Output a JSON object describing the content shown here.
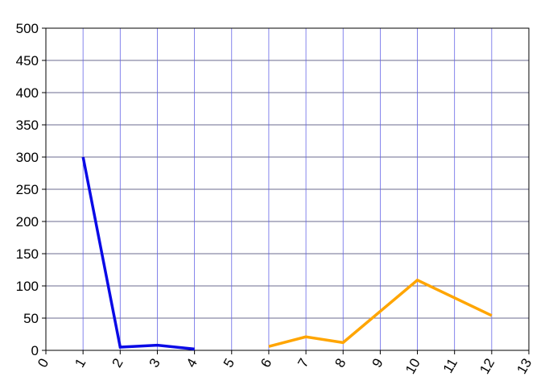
{
  "chart_data": {
    "type": "line",
    "title": "",
    "xlabel": "",
    "ylabel": "",
    "xlim": [
      0,
      13
    ],
    "ylim": [
      0,
      500
    ],
    "x_ticks": [
      0,
      1,
      2,
      3,
      4,
      5,
      6,
      7,
      8,
      9,
      10,
      11,
      12,
      13
    ],
    "y_ticks": [
      0,
      50,
      100,
      150,
      200,
      250,
      300,
      350,
      400,
      450,
      500
    ],
    "grid": true,
    "legend": "none",
    "colors": {
      "grid_vertical": "#6666e6",
      "grid_horizontal": "#3a3a6a",
      "axis": "#000000"
    },
    "series": [
      {
        "color": "#0a0ae6",
        "points": [
          [
            1,
            300
          ],
          [
            2,
            5
          ],
          [
            3,
            8
          ],
          [
            4,
            2
          ]
        ]
      },
      {
        "color": "#ffa500",
        "points": [
          [
            6,
            6
          ],
          [
            7,
            21
          ],
          [
            8,
            12
          ],
          [
            10,
            109
          ],
          [
            12,
            54
          ]
        ]
      }
    ]
  }
}
